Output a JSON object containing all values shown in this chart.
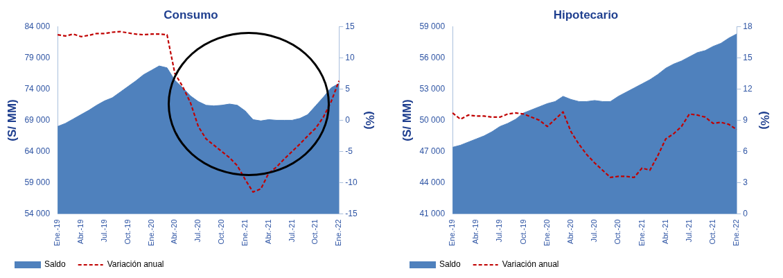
{
  "chart_data": [
    {
      "type": "area",
      "title": "Consumo",
      "ylabel": "(S/ MM)",
      "y2label": "(%)",
      "categories": [
        "Ene.-19",
        null,
        null,
        "Abr.-19",
        null,
        null,
        "Jul.-19",
        null,
        null,
        "Oct.-19",
        null,
        null,
        "Ene.-20",
        null,
        null,
        "Abr.-20",
        null,
        null,
        "Jul.-20",
        null,
        null,
        "Oct.-20",
        null,
        null,
        "Ene.-21",
        null,
        null,
        "Abr.-21",
        null,
        null,
        "Jul.-21",
        null,
        null,
        "Oct.-21",
        null,
        null,
        "Ene.-22"
      ],
      "series": [
        {
          "name": "Saldo",
          "color": "#4f81bd",
          "values": [
            68000,
            68500,
            69200,
            69900,
            70600,
            71400,
            72100,
            72600,
            73500,
            74400,
            75300,
            76300,
            77000,
            77700,
            77400,
            75400,
            74200,
            72900,
            72000,
            71400,
            71300,
            71400,
            71600,
            71400,
            70500,
            69100,
            68900,
            69100,
            69000,
            69000,
            69000,
            69300,
            69900,
            71300,
            72700,
            74200,
            74900
          ]
        },
        {
          "name": "Variación anual",
          "type": "line",
          "axis": "y2",
          "line_style": "dashed",
          "color": "#c00000",
          "values": [
            13.7,
            13.5,
            13.8,
            13.4,
            13.6,
            13.9,
            13.9,
            14.1,
            14.2,
            14.0,
            13.8,
            13.7,
            13.8,
            13.8,
            13.7,
            7.5,
            5.4,
            2.8,
            -1.0,
            -3.0,
            -4.0,
            -5.0,
            -6.0,
            -7.3,
            -9.5,
            -11.5,
            -11.0,
            -8.5,
            -7.5,
            -6.2,
            -5.0,
            -3.8,
            -2.5,
            -1.3,
            0.5,
            3.0,
            6.3
          ]
        }
      ],
      "ylim": [
        54000,
        84000
      ],
      "yticks": [
        {
          "value": 54000,
          "label": "54 000"
        },
        {
          "value": 59000,
          "label": "59 000"
        },
        {
          "value": 64000,
          "label": "64 000"
        },
        {
          "value": 69000,
          "label": "69 000"
        },
        {
          "value": 74000,
          "label": "74 000"
        },
        {
          "value": 79000,
          "label": "79 000"
        },
        {
          "value": 84000,
          "label": "84 000"
        }
      ],
      "y2lim": [
        -15,
        15
      ],
      "y2ticks": [
        -15,
        -10,
        -5,
        0,
        5,
        10,
        15
      ],
      "legend": "bottom",
      "grid": false,
      "marker": "none"
    },
    {
      "type": "area",
      "title": "Hipotecario",
      "ylabel": "(S/ MM)",
      "y2label": "(%)",
      "categories": [
        "Ene.-19",
        null,
        null,
        "Abr.-19",
        null,
        null,
        "Jul.-19",
        null,
        null,
        "Oct.-19",
        null,
        null,
        "Ene.-20",
        null,
        null,
        "Abr.-20",
        null,
        null,
        "Jul.-20",
        null,
        null,
        "Oct.-20",
        null,
        null,
        "Ene.-21",
        null,
        null,
        "Abr.-21",
        null,
        null,
        "Jul.-21",
        null,
        null,
        "Oct.-21",
        null,
        null,
        "Ene.-22"
      ],
      "series": [
        {
          "name": "Saldo",
          "color": "#4f81bd",
          "values": [
            47400,
            47600,
            47900,
            48200,
            48500,
            48900,
            49400,
            49700,
            50100,
            50700,
            51000,
            51300,
            51600,
            51800,
            52300,
            52000,
            51800,
            51800,
            51900,
            51800,
            51800,
            52300,
            52700,
            53100,
            53500,
            53900,
            54400,
            55000,
            55400,
            55700,
            56100,
            56500,
            56700,
            57100,
            57400,
            57900,
            58300
          ]
        },
        {
          "name": "Variación anual",
          "type": "line",
          "axis": "y2",
          "line_style": "dashed",
          "color": "#c00000",
          "values": [
            9.7,
            9.1,
            9.5,
            9.4,
            9.4,
            9.3,
            9.3,
            9.6,
            9.7,
            9.6,
            9.3,
            9.0,
            8.4,
            9.1,
            9.8,
            7.9,
            6.7,
            5.7,
            4.9,
            4.2,
            3.5,
            3.6,
            3.6,
            3.5,
            4.4,
            4.2,
            5.6,
            7.2,
            7.7,
            8.4,
            9.6,
            9.5,
            9.3,
            8.7,
            8.8,
            8.6,
            8.1
          ]
        }
      ],
      "ylim": [
        41000,
        59000
      ],
      "yticks": [
        {
          "value": 41000,
          "label": "41 000"
        },
        {
          "value": 44000,
          "label": "44 000"
        },
        {
          "value": 47000,
          "label": "47 000"
        },
        {
          "value": 50000,
          "label": "50 000"
        },
        {
          "value": 53000,
          "label": "53 000"
        },
        {
          "value": 56000,
          "label": "56 000"
        },
        {
          "value": 59000,
          "label": "59 000"
        }
      ],
      "y2lim": [
        0,
        18
      ],
      "y2ticks": [
        0,
        3,
        6,
        9,
        12,
        15,
        18
      ],
      "legend": "bottom",
      "grid": false,
      "marker": "none"
    }
  ]
}
